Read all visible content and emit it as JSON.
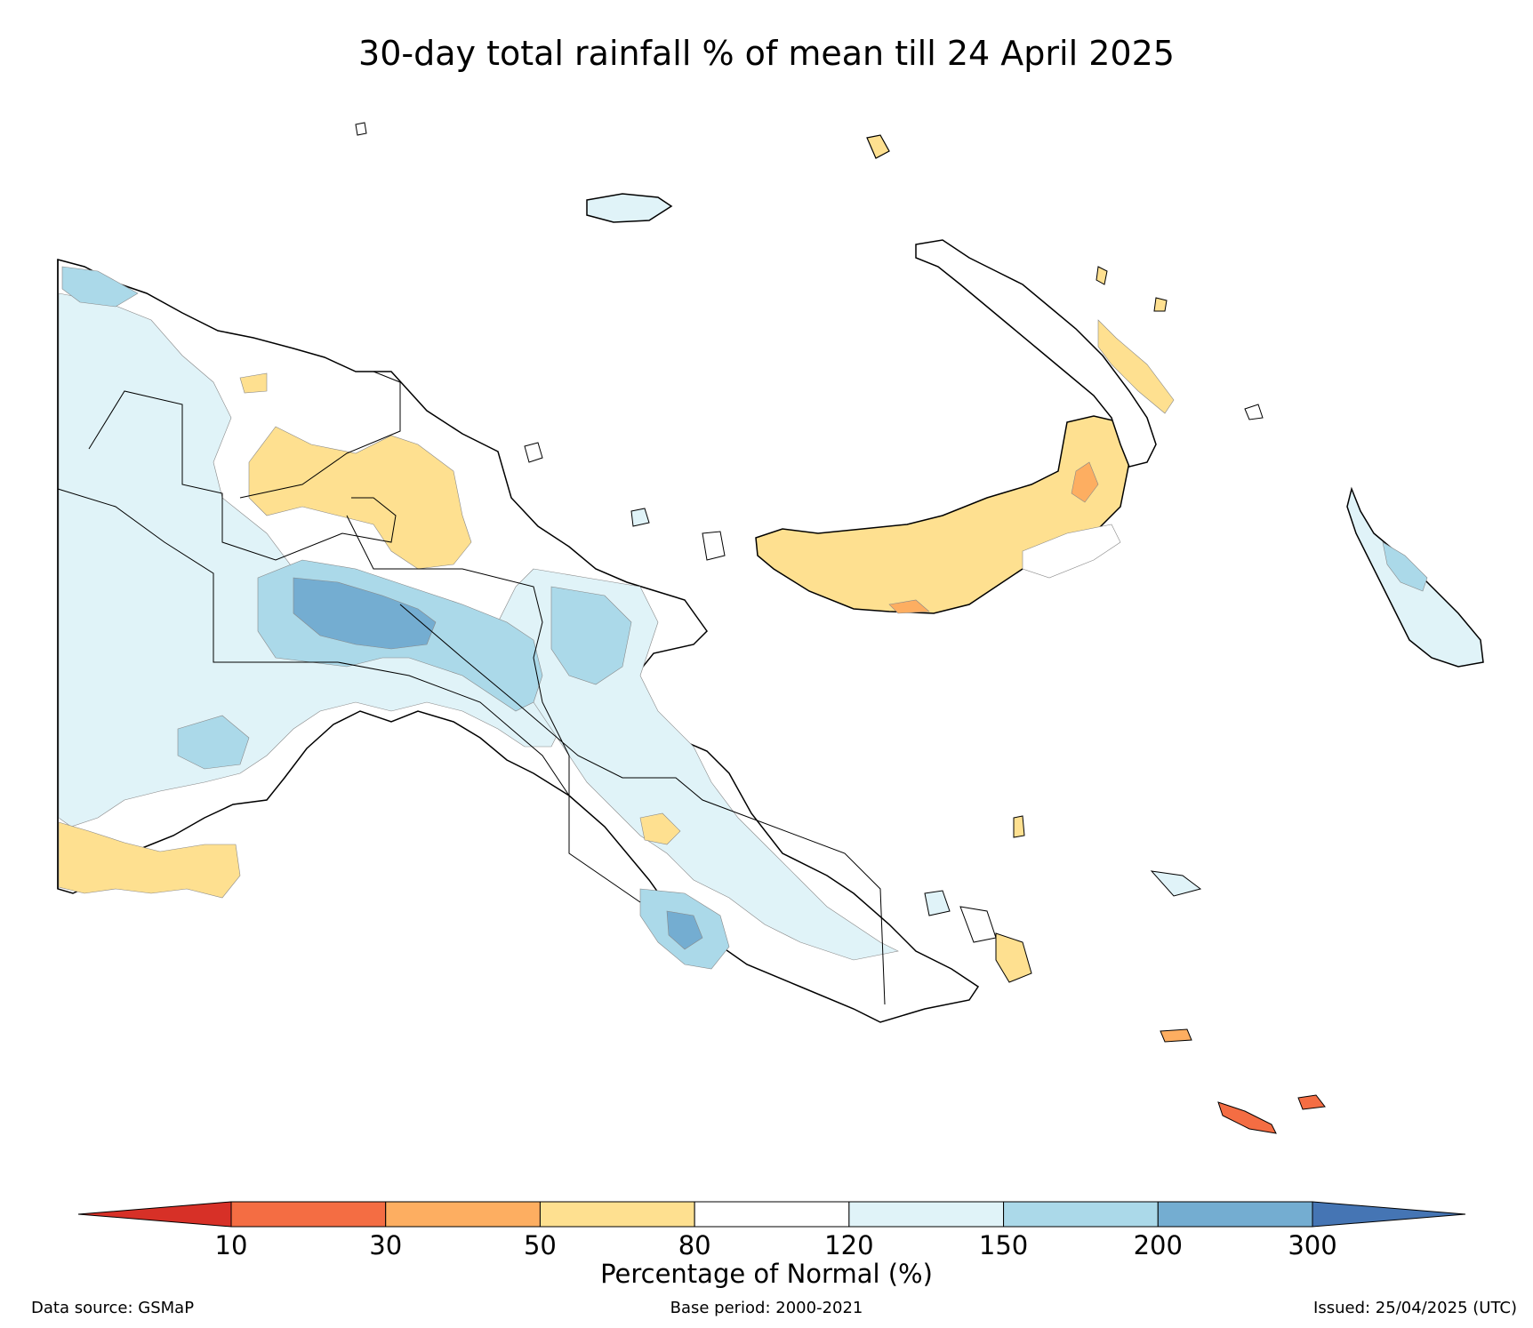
{
  "title": "30-day total rainfall % of mean till 24 April 2025",
  "legend": {
    "title": "Percentage of Normal (%)",
    "ticks": [
      "10",
      "30",
      "50",
      "80",
      "120",
      "150",
      "200",
      "300"
    ],
    "bins": [
      {
        "range": "<10",
        "color": "#d73027"
      },
      {
        "range": "10-30",
        "color": "#f46d43"
      },
      {
        "range": "30-50",
        "color": "#fdae61"
      },
      {
        "range": "50-80",
        "color": "#fee090"
      },
      {
        "range": "80-120",
        "color": "#ffffff"
      },
      {
        "range": "120-150",
        "color": "#e0f3f8"
      },
      {
        "range": "150-200",
        "color": "#abd9e9"
      },
      {
        "range": "200-300",
        "color": "#74add1"
      },
      {
        "range": ">300",
        "color": "#4575b4"
      }
    ]
  },
  "footer": {
    "source": "Data source: GSMaP",
    "base_period": "Base period: 2000-2021",
    "issued": "Issued: 25/04/2025 (UTC)"
  }
}
